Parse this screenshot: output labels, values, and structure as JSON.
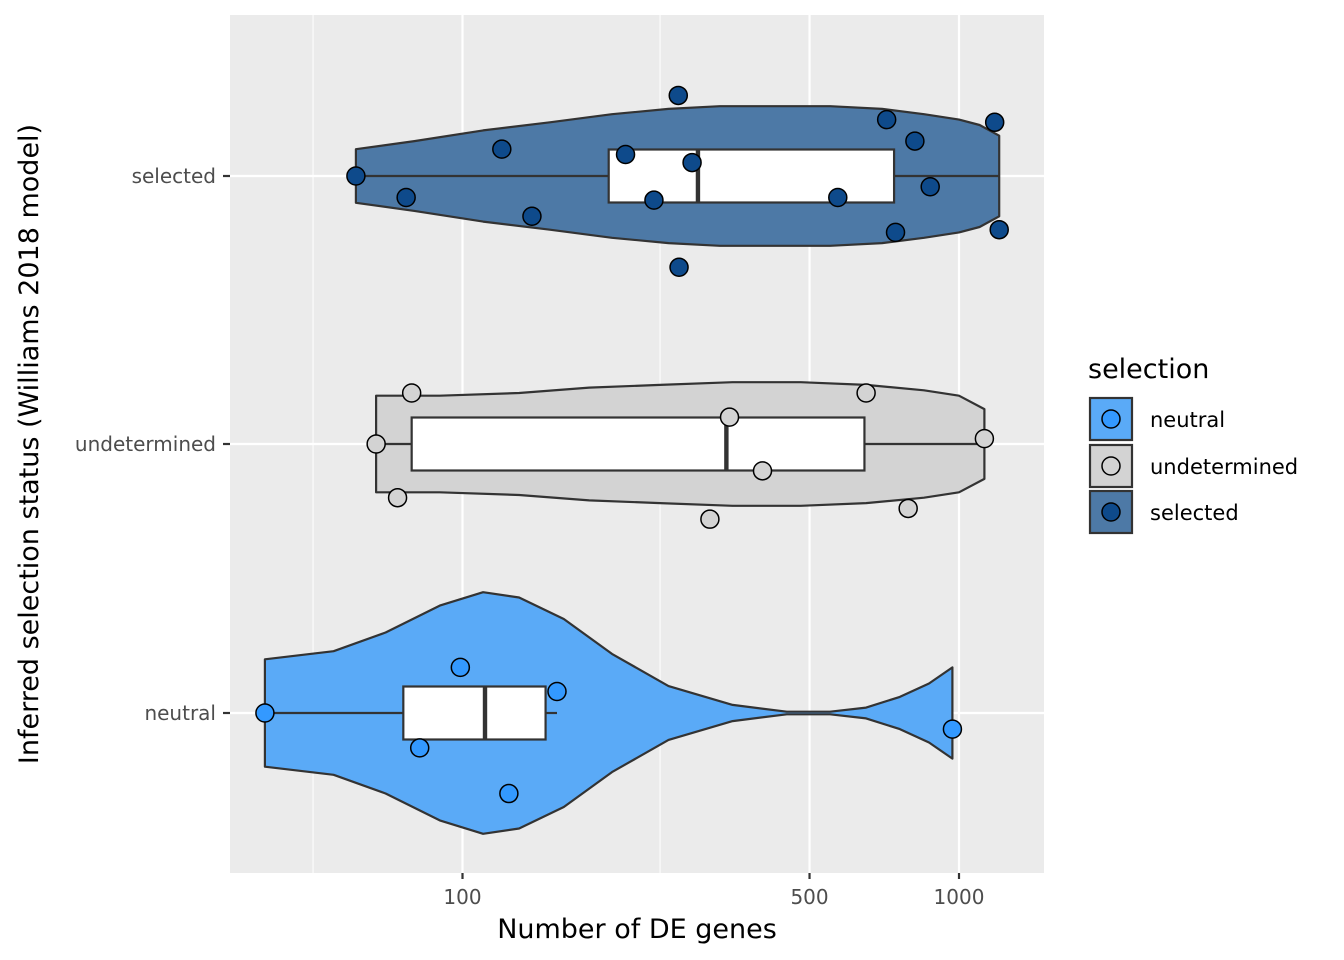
{
  "chart_data": {
    "type": "violin",
    "x_axis": {
      "label": "Number of DE genes",
      "scale": "log10",
      "ticks": [
        {
          "value": 100,
          "label": "100"
        },
        {
          "value": 500,
          "label": "500"
        },
        {
          "value": 1000,
          "label": "1000"
        }
      ],
      "minor_ticks": [
        50,
        250
      ]
    },
    "y_axis": {
      "label": "Inferred selection status (Williams 2018 model)",
      "categories": [
        "neutral",
        "undetermined",
        "selected"
      ]
    },
    "legend": {
      "title": "selection",
      "placement": "right",
      "entries": [
        {
          "label": "neutral",
          "fill": "#3399FF",
          "violin_fill": "#5AAAF7"
        },
        {
          "label": "undetermined",
          "fill": "#D3D3D3",
          "violin_fill": "#D3D3D3"
        },
        {
          "label": "selected",
          "fill": "#0E4A8B",
          "violin_fill": "#4D79A6"
        }
      ]
    },
    "groups": [
      {
        "name": "neutral",
        "points": [
          {
            "x": 40,
            "jitter": 0.0
          },
          {
            "x": 82,
            "jitter": -0.13
          },
          {
            "x": 99,
            "jitter": 0.17
          },
          {
            "x": 124,
            "jitter": -0.3
          },
          {
            "x": 155,
            "jitter": 0.08
          },
          {
            "x": 970,
            "jitter": -0.06
          }
        ],
        "box": {
          "q1": 76,
          "median": 111,
          "q3": 147,
          "whisker_low": 40,
          "whisker_high": 155
        },
        "violin": [
          {
            "x": 40,
            "w": 0.2
          },
          {
            "x": 55,
            "w": 0.23
          },
          {
            "x": 70,
            "w": 0.3
          },
          {
            "x": 90,
            "w": 0.4
          },
          {
            "x": 110,
            "w": 0.45
          },
          {
            "x": 130,
            "w": 0.43
          },
          {
            "x": 160,
            "w": 0.35
          },
          {
            "x": 200,
            "w": 0.22
          },
          {
            "x": 260,
            "w": 0.1
          },
          {
            "x": 350,
            "w": 0.03
          },
          {
            "x": 450,
            "w": 0.005
          },
          {
            "x": 550,
            "w": 0.005
          },
          {
            "x": 650,
            "w": 0.02
          },
          {
            "x": 760,
            "w": 0.06
          },
          {
            "x": 870,
            "w": 0.11
          },
          {
            "x": 970,
            "w": 0.17
          }
        ]
      },
      {
        "name": "undetermined",
        "points": [
          {
            "x": 67,
            "jitter": 0.0
          },
          {
            "x": 74,
            "jitter": -0.2
          },
          {
            "x": 79,
            "jitter": 0.19
          },
          {
            "x": 315,
            "jitter": -0.28
          },
          {
            "x": 345,
            "jitter": 0.1
          },
          {
            "x": 402,
            "jitter": -0.1
          },
          {
            "x": 650,
            "jitter": 0.19
          },
          {
            "x": 790,
            "jitter": -0.24
          },
          {
            "x": 1125,
            "jitter": 0.02
          }
        ],
        "box": {
          "q1": 79,
          "median": 340,
          "q3": 645,
          "whisker_low": 67,
          "whisker_high": 1125
        },
        "violin": [
          {
            "x": 67,
            "w": 0.18
          },
          {
            "x": 90,
            "w": 0.18
          },
          {
            "x": 130,
            "w": 0.19
          },
          {
            "x": 180,
            "w": 0.21
          },
          {
            "x": 250,
            "w": 0.22
          },
          {
            "x": 350,
            "w": 0.23
          },
          {
            "x": 480,
            "w": 0.23
          },
          {
            "x": 650,
            "w": 0.22
          },
          {
            "x": 850,
            "w": 0.2
          },
          {
            "x": 1000,
            "w": 0.18
          },
          {
            "x": 1125,
            "w": 0.13
          }
        ]
      },
      {
        "name": "selected",
        "points": [
          {
            "x": 61,
            "jitter": 0.0
          },
          {
            "x": 77,
            "jitter": -0.08
          },
          {
            "x": 120,
            "jitter": 0.1
          },
          {
            "x": 138,
            "jitter": -0.15
          },
          {
            "x": 213,
            "jitter": 0.08
          },
          {
            "x": 243,
            "jitter": -0.09
          },
          {
            "x": 272,
            "jitter": 0.3
          },
          {
            "x": 273,
            "jitter": -0.34
          },
          {
            "x": 290,
            "jitter": 0.05
          },
          {
            "x": 570,
            "jitter": -0.08
          },
          {
            "x": 715,
            "jitter": 0.21
          },
          {
            "x": 745,
            "jitter": -0.21
          },
          {
            "x": 815,
            "jitter": 0.13
          },
          {
            "x": 875,
            "jitter": -0.04
          },
          {
            "x": 1180,
            "jitter": 0.2
          },
          {
            "x": 1205,
            "jitter": -0.2
          }
        ],
        "box": {
          "q1": 197,
          "median": 298,
          "q3": 740,
          "whisker_low": 61,
          "whisker_high": 1205
        },
        "violin": [
          {
            "x": 61,
            "w": 0.1
          },
          {
            "x": 80,
            "w": 0.13
          },
          {
            "x": 110,
            "w": 0.17
          },
          {
            "x": 150,
            "w": 0.2
          },
          {
            "x": 200,
            "w": 0.23
          },
          {
            "x": 260,
            "w": 0.25
          },
          {
            "x": 330,
            "w": 0.26
          },
          {
            "x": 420,
            "w": 0.26
          },
          {
            "x": 550,
            "w": 0.26
          },
          {
            "x": 700,
            "w": 0.25
          },
          {
            "x": 850,
            "w": 0.23
          },
          {
            "x": 1000,
            "w": 0.21
          },
          {
            "x": 1100,
            "w": 0.19
          },
          {
            "x": 1205,
            "w": 0.15
          }
        ]
      }
    ]
  }
}
